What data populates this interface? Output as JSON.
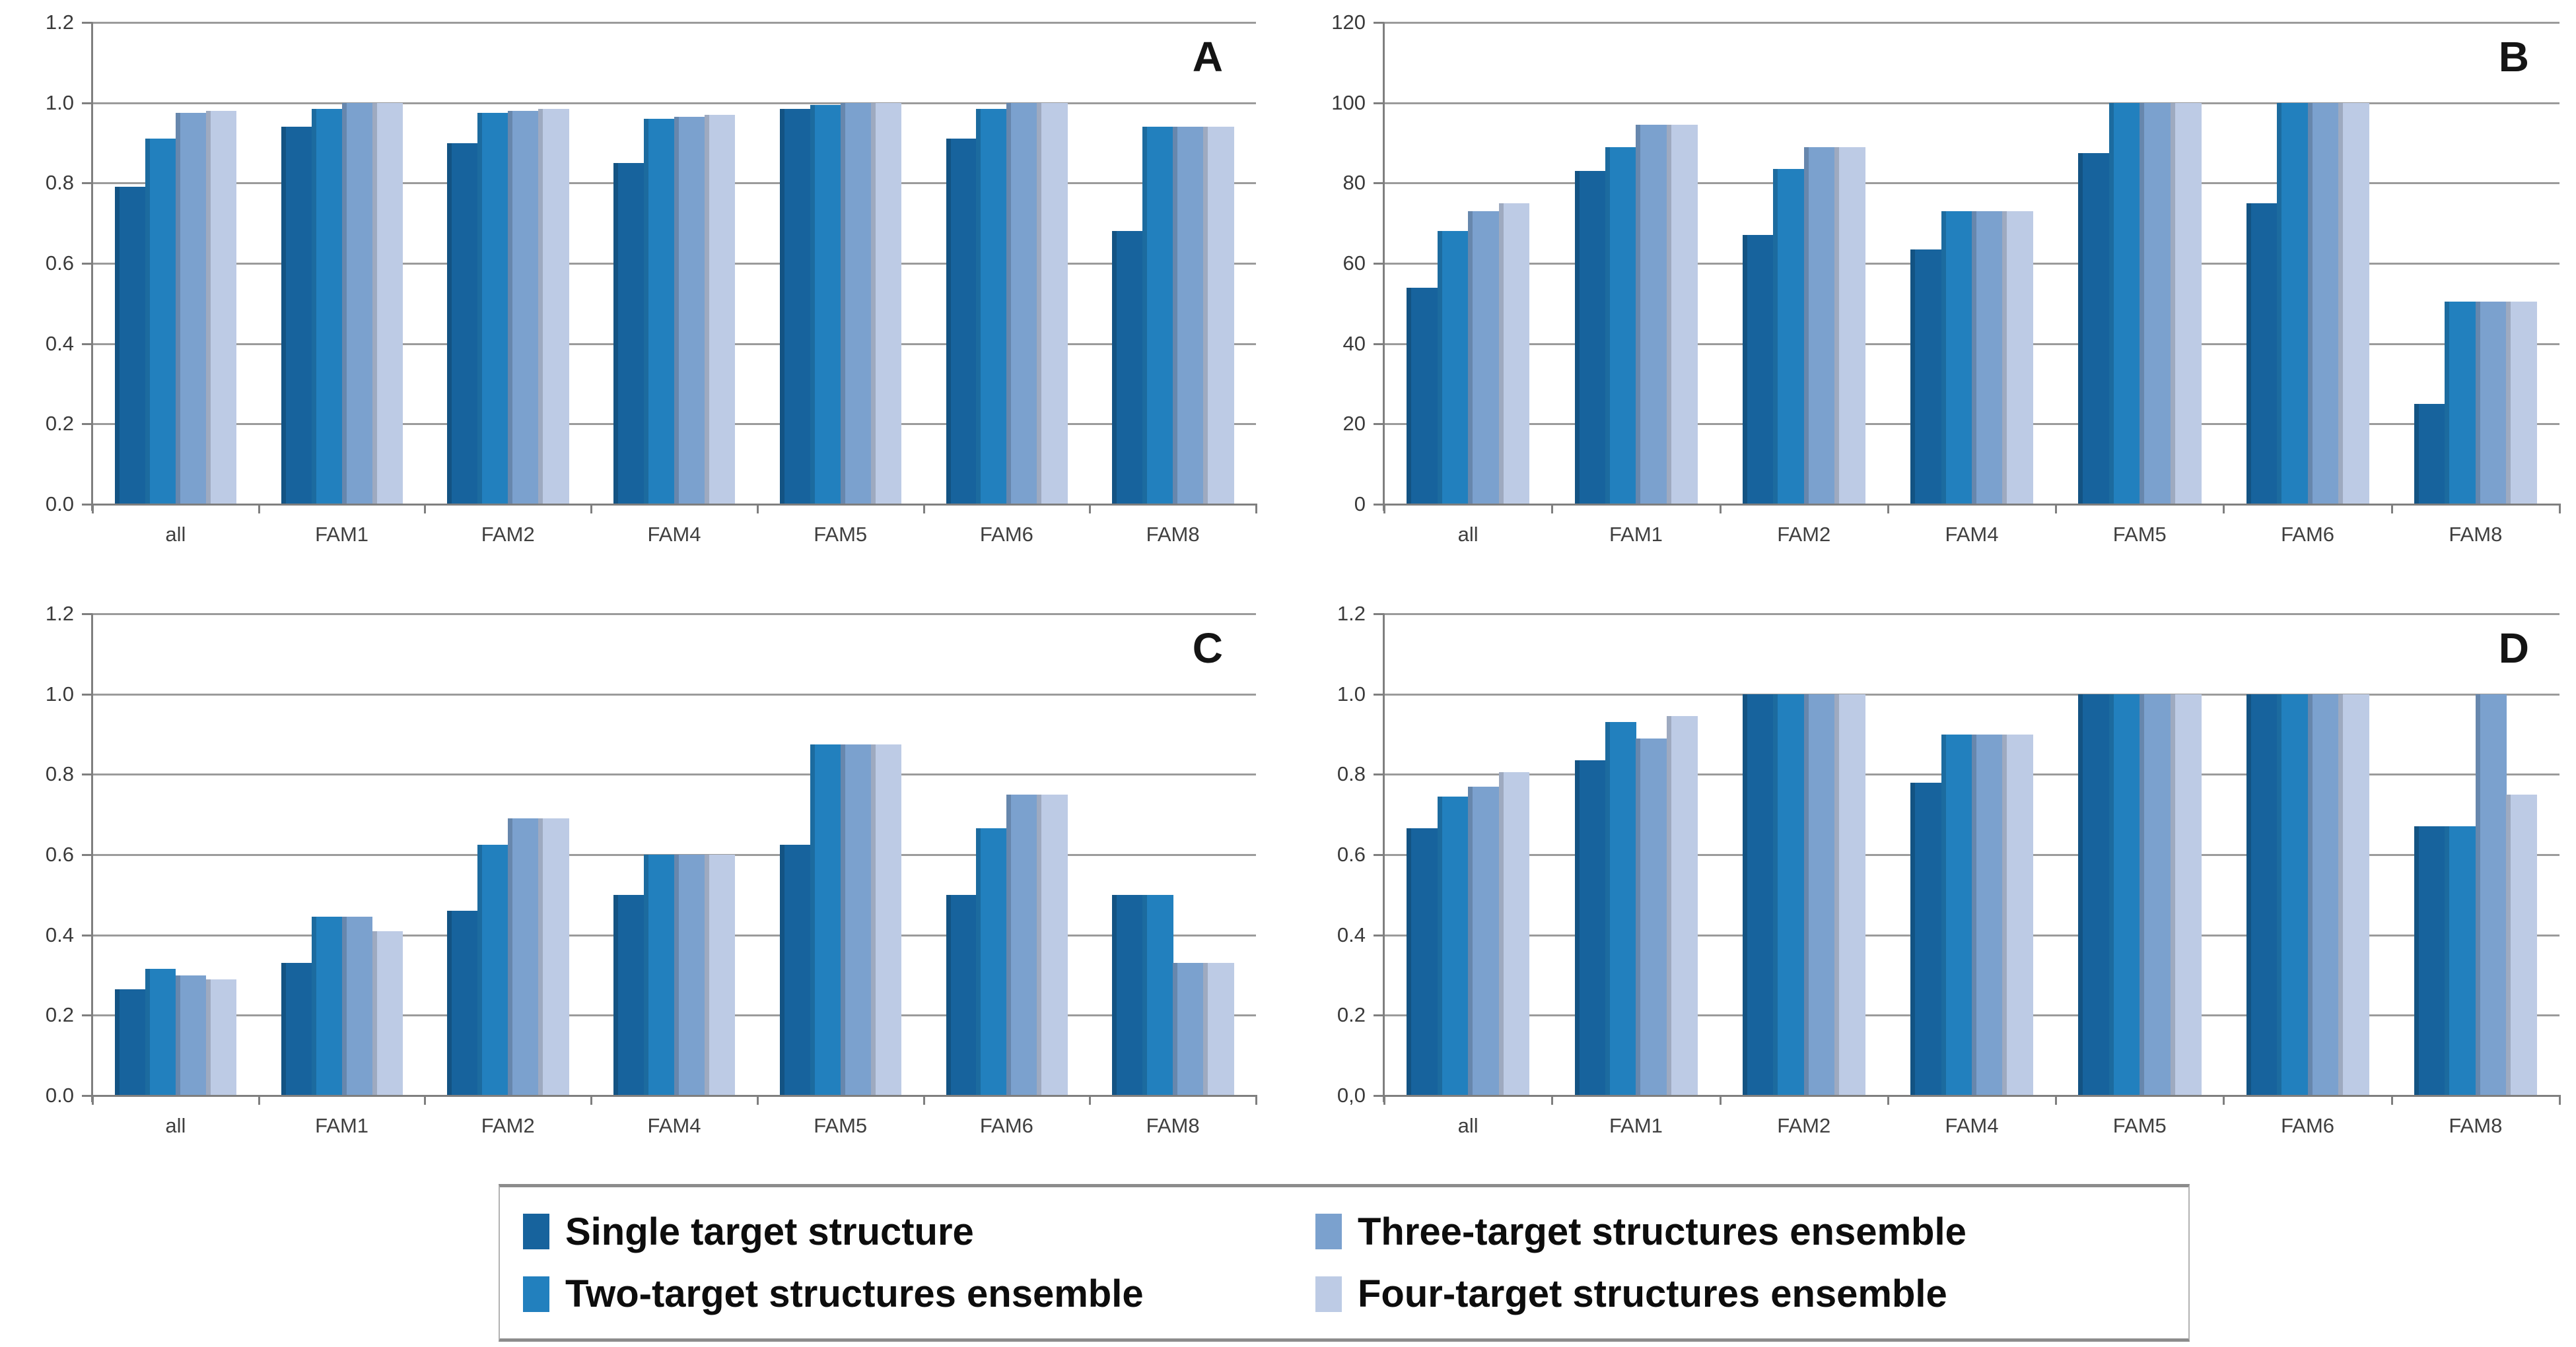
{
  "figure": {
    "background": "#ffffff",
    "series_colors": [
      "#17639D",
      "#2280BE",
      "#7BA1CE",
      "#BDCBE5"
    ],
    "gridline_color": "#9b9b9b",
    "axis_color": "#7f7f7f",
    "tick_label_color": "#3a3a3a",
    "panel_letter_color": "#141414"
  },
  "chart_data": [
    {
      "panel_label": "A",
      "type": "bar",
      "categories": [
        "all",
        "FAM1",
        "FAM2",
        "FAM4",
        "FAM5",
        "FAM6",
        "FAM8"
      ],
      "series": [
        {
          "name": "Single target structure",
          "values": [
            0.79,
            0.94,
            0.9,
            0.85,
            0.985,
            0.91,
            0.68
          ]
        },
        {
          "name": "Two-target structures ensemble",
          "values": [
            0.91,
            0.985,
            0.975,
            0.96,
            0.995,
            0.985,
            0.94
          ]
        },
        {
          "name": "Three-target structures ensemble",
          "values": [
            0.975,
            1.0,
            0.98,
            0.965,
            1.0,
            1.0,
            0.94
          ]
        },
        {
          "name": "Four-target structures ensemble",
          "values": [
            0.98,
            1.0,
            0.985,
            0.97,
            1.0,
            1.0,
            0.94
          ]
        }
      ],
      "ylim": [
        0,
        1.2
      ],
      "ytick_step": 0.2,
      "ytick_labels": [
        "1.2",
        "1.0",
        "0.8",
        "0.6",
        "0.4",
        "0.2",
        "0.0"
      ],
      "grid": true,
      "legend_position": "none"
    },
    {
      "panel_label": "B",
      "type": "bar",
      "categories": [
        "all",
        "FAM1",
        "FAM2",
        "FAM4",
        "FAM5",
        "FAM6",
        "FAM8"
      ],
      "series": [
        {
          "name": "Single target structure",
          "values": [
            54,
            83,
            67,
            63.5,
            87.5,
            75,
            25
          ]
        },
        {
          "name": "Two-target structures ensemble",
          "values": [
            68,
            89,
            83.5,
            73,
            100,
            100,
            50.5
          ]
        },
        {
          "name": "Three-target structures ensemble",
          "values": [
            73,
            94.5,
            89,
            73,
            100,
            100,
            50.5
          ]
        },
        {
          "name": "Four-target structures ensemble",
          "values": [
            75,
            94.5,
            89,
            73,
            100,
            100,
            50.5
          ]
        }
      ],
      "ylim": [
        0,
        120
      ],
      "ytick_step": 20,
      "ytick_labels": [
        "120",
        "100",
        "80",
        "60",
        "40",
        "20",
        "0"
      ],
      "grid": true,
      "legend_position": "none"
    },
    {
      "panel_label": "C",
      "type": "bar",
      "categories": [
        "all",
        "FAM1",
        "FAM2",
        "FAM4",
        "FAM5",
        "FAM6",
        "FAM8"
      ],
      "series": [
        {
          "name": "Single target structure",
          "values": [
            0.265,
            0.33,
            0.46,
            0.5,
            0.625,
            0.5,
            0.5
          ]
        },
        {
          "name": "Two-target structures ensemble",
          "values": [
            0.315,
            0.445,
            0.625,
            0.6,
            0.875,
            0.665,
            0.5
          ]
        },
        {
          "name": "Three-target structures ensemble",
          "values": [
            0.3,
            0.445,
            0.69,
            0.6,
            0.875,
            0.75,
            0.33
          ]
        },
        {
          "name": "Four-target structures ensemble",
          "values": [
            0.29,
            0.41,
            0.69,
            0.6,
            0.875,
            0.75,
            0.33
          ]
        }
      ],
      "ylim": [
        0,
        1.2
      ],
      "ytick_step": 0.2,
      "ytick_labels": [
        "1.2",
        "1.0",
        "0.8",
        "0.6",
        "0.4",
        "0.2",
        "0.0"
      ],
      "grid": true,
      "legend_position": "none"
    },
    {
      "panel_label": "D",
      "type": "bar",
      "categories": [
        "all",
        "FAM1",
        "FAM2",
        "FAM4",
        "FAM5",
        "FAM6",
        "FAM8"
      ],
      "series": [
        {
          "name": "Single target structure",
          "values": [
            0.665,
            0.835,
            1.0,
            0.78,
            1.0,
            1.0,
            0.67
          ]
        },
        {
          "name": "Two-target structures ensemble",
          "values": [
            0.745,
            0.93,
            1.0,
            0.9,
            1.0,
            1.0,
            0.67
          ]
        },
        {
          "name": "Three-target structures ensemble",
          "values": [
            0.77,
            0.89,
            1.0,
            0.9,
            1.0,
            1.0,
            1.0
          ]
        },
        {
          "name": "Four-target structures ensemble",
          "values": [
            0.805,
            0.945,
            1.0,
            0.9,
            1.0,
            1.0,
            0.75
          ]
        }
      ],
      "ylim": [
        0,
        1.2
      ],
      "ytick_step": 0.2,
      "ytick_labels": [
        "1.2",
        "1.0",
        "0.8",
        "0.6",
        "0.4",
        "0.2",
        "0,0"
      ],
      "grid": true,
      "legend_position": "none"
    }
  ],
  "legend": {
    "items": [
      {
        "label": "Single target structure",
        "color": "#17639D"
      },
      {
        "label": "Two-target structures ensemble",
        "color": "#2280BE"
      },
      {
        "label": "Three-target structures ensemble",
        "color": "#7BA1CE"
      },
      {
        "label": "Four-target structures ensemble",
        "color": "#BDCBE5"
      }
    ]
  }
}
